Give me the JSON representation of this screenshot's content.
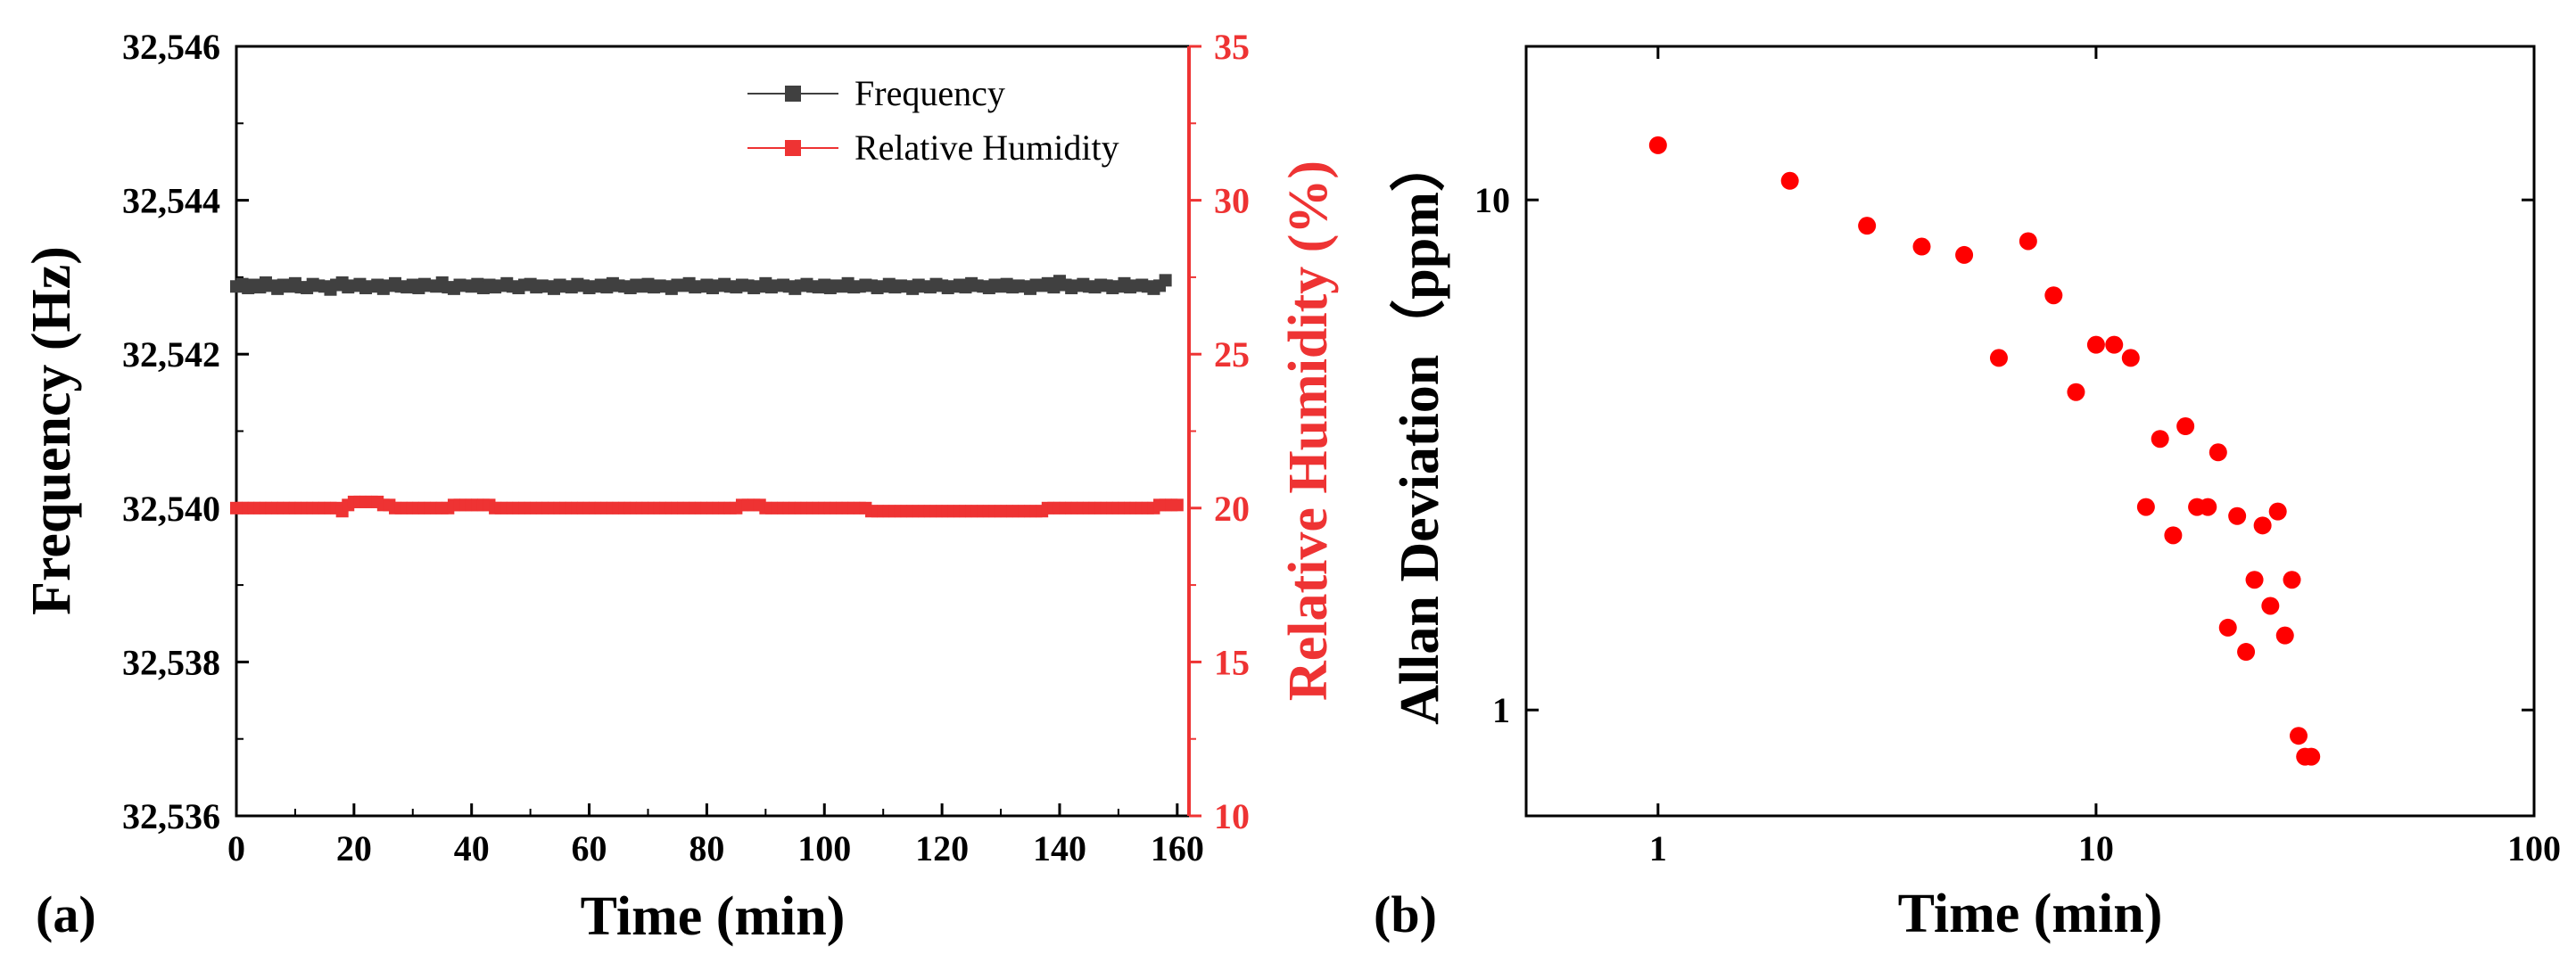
{
  "colors": {
    "frequency": "#404040",
    "humidity": "#ee3333",
    "allan": "#ff0000",
    "axis": "#000000"
  },
  "panels": [
    {
      "label": "(a)"
    },
    {
      "label": "(b)"
    }
  ],
  "chart_data": [
    {
      "type": "line",
      "panel": "(a)",
      "xlabel": "Time (min)",
      "ylabel_left": "Frequency (Hz)",
      "ylabel_right": "Relative Humidity (%)",
      "xlim": [
        0,
        162
      ],
      "ylim_left": [
        32536,
        32546
      ],
      "ylim_right": [
        10,
        35
      ],
      "x_ticks": [
        0,
        20,
        40,
        60,
        80,
        100,
        120,
        140,
        160
      ],
      "x_tick_labels": [
        "0",
        "20",
        "40",
        "60",
        "80",
        "100",
        "120",
        "140",
        "160"
      ],
      "y_left_ticks": [
        32536,
        32538,
        32540,
        32542,
        32544,
        32546
      ],
      "y_left_tick_labels": [
        "32,536",
        "32,538",
        "32,540",
        "32,542",
        "32,544",
        "32,546"
      ],
      "y_right_ticks": [
        10,
        15,
        20,
        25,
        30,
        35
      ],
      "y_right_tick_labels": [
        "10",
        "15",
        "20",
        "25",
        "30",
        "35"
      ],
      "legend": [
        "Frequency",
        "Relative Humidity"
      ],
      "legend_position": "top-right",
      "series": [
        {
          "name": "Frequency",
          "axis": "left",
          "x_start": 0,
          "x_step": 1,
          "values": [
            32542.88,
            32542.91,
            32542.86,
            32542.9,
            32542.87,
            32542.93,
            32542.89,
            32542.85,
            32542.9,
            32542.88,
            32542.92,
            32542.87,
            32542.86,
            32542.91,
            32542.89,
            32542.88,
            32542.84,
            32542.9,
            32542.93,
            32542.87,
            32542.89,
            32542.91,
            32542.86,
            32542.88,
            32542.9,
            32542.85,
            32542.89,
            32542.92,
            32542.88,
            32542.87,
            32542.9,
            32542.86,
            32542.91,
            32542.89,
            32542.88,
            32542.93,
            32542.87,
            32542.85,
            32542.9,
            32542.89,
            32542.88,
            32542.91,
            32542.86,
            32542.9,
            32542.87,
            32542.89,
            32542.92,
            32542.88,
            32542.86,
            32542.9,
            32542.91,
            32542.87,
            32542.89,
            32542.88,
            32542.85,
            32542.9,
            32542.88,
            32542.87,
            32542.91,
            32542.89,
            32542.86,
            32542.88,
            32542.9,
            32542.87,
            32542.92,
            32542.89,
            32542.88,
            32542.86,
            32542.9,
            32542.88,
            32542.91,
            32542.87,
            32542.89,
            32542.88,
            32542.85,
            32542.9,
            32542.89,
            32542.92,
            32542.87,
            32542.88,
            32542.9,
            32542.86,
            32542.89,
            32542.91,
            32542.88,
            32542.87,
            32542.9,
            32542.89,
            32542.86,
            32542.88,
            32542.92,
            32542.87,
            32542.89,
            32542.9,
            32542.88,
            32542.85,
            32542.89,
            32542.91,
            32542.88,
            32542.87,
            32542.9,
            32542.86,
            32542.89,
            32542.88,
            32542.92,
            32542.87,
            32542.88,
            32542.9,
            32542.89,
            32542.86,
            32542.88,
            32542.91,
            32542.87,
            32542.89,
            32542.88,
            32542.85,
            32542.9,
            32542.88,
            32542.87,
            32542.91,
            32542.89,
            32542.86,
            32542.88,
            32542.9,
            32542.87,
            32542.92,
            32542.89,
            32542.88,
            32542.86,
            32542.9,
            32542.88,
            32542.91,
            32542.87,
            32542.89,
            32542.88,
            32542.85,
            32542.9,
            32542.89,
            32542.92,
            32542.87,
            32542.95,
            32542.9,
            32542.86,
            32542.89,
            32542.91,
            32542.88,
            32542.87,
            32542.9,
            32542.89,
            32542.86,
            32542.88,
            32542.92,
            32542.87,
            32542.89,
            32542.9,
            32542.88,
            32542.85,
            32542.89,
            32542.96
          ]
        },
        {
          "name": "Relative Humidity",
          "axis": "right",
          "x_start": 0,
          "x_step": 1,
          "values": [
            20,
            20,
            20,
            20,
            20,
            20,
            20,
            20,
            20,
            20,
            20,
            20,
            20,
            20,
            20,
            20,
            20,
            20,
            19.9,
            20.1,
            20.2,
            20.2,
            20.2,
            20.2,
            20.2,
            20.1,
            20.1,
            20,
            20,
            20,
            20,
            20,
            20,
            20,
            20,
            20,
            20,
            20.1,
            20.1,
            20.1,
            20.1,
            20.1,
            20.1,
            20.1,
            20,
            20,
            20,
            20,
            20,
            20,
            20,
            20,
            20,
            20,
            20,
            20,
            20,
            20,
            20,
            20,
            20,
            20,
            20,
            20,
            20,
            20,
            20,
            20,
            20,
            20,
            20,
            20,
            20,
            20,
            20,
            20,
            20,
            20,
            20,
            20,
            20,
            20,
            20,
            20,
            20,
            20,
            20.1,
            20.1,
            20.1,
            20.1,
            20,
            20,
            20,
            20,
            20,
            20,
            20,
            20,
            20,
            20,
            20,
            20,
            20,
            20,
            20,
            20,
            20,
            20,
            19.9,
            19.9,
            19.9,
            19.9,
            19.9,
            19.9,
            19.9,
            19.9,
            19.9,
            19.9,
            19.9,
            19.9,
            19.9,
            19.9,
            19.9,
            19.9,
            19.9,
            19.9,
            19.9,
            19.9,
            19.9,
            19.9,
            19.9,
            19.9,
            19.9,
            19.9,
            19.9,
            19.9,
            19.9,
            19.9,
            20,
            20,
            20,
            20,
            20,
            20,
            20,
            20,
            20,
            20,
            20,
            20,
            20,
            20,
            20,
            20,
            20,
            20,
            20,
            20.1,
            20.1,
            20.1,
            20.1
          ]
        }
      ]
    },
    {
      "type": "scatter",
      "panel": "(b)",
      "xlabel": "Time (min)",
      "ylabel": "Allan Deviation（ppm）",
      "xscale": "log",
      "yscale": "log",
      "xlim": [
        0.5,
        100
      ],
      "ylim": [
        0.62,
        20
      ],
      "x_ticks": [
        1,
        10,
        100
      ],
      "x_tick_labels": [
        "1",
        "10",
        "100"
      ],
      "y_ticks": [
        1,
        10
      ],
      "y_tick_labels": [
        "1",
        "10"
      ],
      "x": [
        1,
        2,
        3,
        4,
        5,
        6,
        7,
        8,
        9,
        10,
        11,
        12,
        13,
        14,
        15,
        16,
        17,
        18,
        19,
        20,
        21,
        22,
        23,
        24,
        25,
        26,
        27,
        28,
        29,
        30,
        31
      ],
      "y": [
        12.8,
        10.9,
        8.9,
        8.1,
        7.8,
        4.9,
        8.3,
        6.5,
        4.2,
        5.2,
        5.2,
        4.9,
        2.5,
        3.4,
        2.2,
        3.6,
        2.5,
        2.5,
        3.2,
        1.45,
        2.4,
        1.3,
        1.8,
        2.3,
        1.6,
        2.45,
        1.4,
        1.8,
        0.89,
        0.81,
        0.81
      ]
    }
  ]
}
